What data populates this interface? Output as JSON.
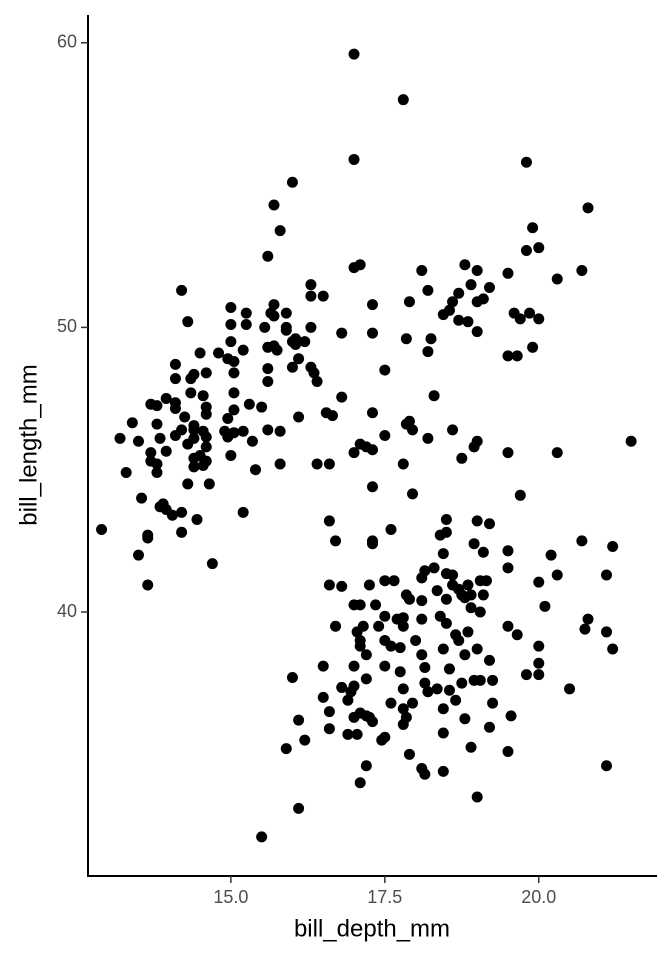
{
  "chart_data": {
    "type": "scatter",
    "x_label": "bill_depth_mm",
    "y_label": "bill_length_mm",
    "color": "#000000",
    "xlim": [
      12.68,
      21.92
    ],
    "ylim": [
      30.725,
      60.975
    ],
    "xticks": [
      {
        "value": 15,
        "label": "15.0"
      },
      17.5,
      {
        "value": 20,
        "label": "20.0"
      }
    ],
    "yticks": [
      40,
      50,
      60
    ],
    "x": [
      17.0,
      17.8,
      17.0,
      19.8,
      16.0,
      20.8,
      15.7,
      19.9,
      15.8,
      19.8,
      20.0,
      15.6,
      17.1,
      17.0,
      18.8,
      19.0,
      18.1,
      19.5,
      20.7,
      20.3,
      16.3,
      14.2,
      18.2,
      18.9,
      19.2,
      18.7,
      16.5,
      16.3,
      19.1,
      18.6,
      17.9,
      19.0,
      17.3,
      15.7,
      15.0,
      15.25,
      15.9,
      15.65,
      15.7,
      18.55,
      19.6,
      19.85,
      19.7,
      20.0,
      18.45,
      14.3,
      18.7,
      18.85,
      15.0,
      15.25,
      15.9,
      15.9,
      16.3,
      15.55,
      16.8,
      17.3,
      19.0,
      16.05,
      17.85,
      18.25,
      16.2,
      15.0,
      16.05,
      16.0,
      15.6,
      15.7,
      19.9,
      14.5,
      14.8,
      15.2,
      15.75,
      18.2,
      19.5,
      19.65,
      16.1,
      14.95,
      15.05,
      16.0,
      14.1,
      16.3,
      15.6,
      17.5,
      15.05,
      14.6,
      14.4,
      16.35,
      14.35,
      14.1,
      15.6,
      16.4,
      14.35,
      18.3,
      15.05,
      14.55,
      13.95,
      16.8,
      13.7,
      13.8,
      14.1,
      15.3,
      15.5,
      14.1,
      14.6,
      15.05,
      17.3,
      16.55,
      16.65,
      14.6,
      14.25,
      14.95,
      16.1,
      17.9,
      17.85,
      17.95,
      13.4,
      13.8,
      14.4,
      14.2,
      14.4,
      14.55,
      14.9,
      15.05,
      15.2,
      15.6,
      15.8,
      18.6,
      13.2,
      13.85,
      14.1,
      14.4,
      14.6,
      14.95,
      17.5,
      18.2,
      19.0,
      21.5,
      13.5,
      17.1,
      17.2,
      18.95,
      14.3,
      14.6,
      15.35,
      17.0,
      17.3,
      19.5,
      20.3,
      18.75,
      13.7,
      13.95,
      13.7,
      14.5,
      14.4,
      15.0,
      13.8,
      14.6,
      14.4,
      14.55,
      15.8,
      16.4,
      16.6,
      17.8,
      13.3,
      13.8,
      15.4,
      14.3,
      17.3,
      14.65,
      19.7,
      17.95,
      13.55,
      13.9,
      13.95,
      14.05,
      15.2,
      14.2,
      14.45,
      13.85,
      18.5,
      19.0,
      19.2,
      16.6,
      12.9,
      14.2,
      17.6,
      18.5,
      13.65,
      13.65,
      18.4,
      17.3,
      17.3,
      16.7,
      18.95,
      20.7,
      21.2,
      19.5,
      19.1,
      13.5,
      18.45,
      20.2,
      14.7,
      18.3,
      19.5,
      20.3,
      21.1,
      18.15,
      18.5,
      18.6,
      17.5,
      17.65,
      18.1,
      19.05,
      19.15,
      20.0,
      13.65,
      16.6,
      16.8,
      17.25,
      18.6,
      18.85,
      18.7,
      18.35,
      17.85,
      18.75,
      18.9,
      17.9,
      18.1,
      19.1,
      18.5,
      18.8,
      17.0,
      17.1,
      17.35,
      20.1,
      18.9,
      19.05,
      17.8,
      17.5,
      17.7,
      18.1,
      18.4,
      20.8,
      21.1,
      21.2,
      20.75,
      18.5,
      16.7,
      17.15,
      17.4,
      17.8,
      19.5,
      17.05,
      18.85,
      19.65,
      18.65,
      17.1,
      17.5,
      17.6,
      18.0,
      18.7,
      17.1,
      17.2,
      17.75,
      18.45,
      19.0,
      20.0,
      18.1,
      18.8,
      17.0,
      16.5,
      17.5,
      19.2,
      20.0,
      18.15,
      17.75,
      18.55,
      19.8,
      20.0,
      16.0,
      18.95,
      17.2,
      19.05,
      19.25,
      18.15,
      18.75,
      16.8,
      20.5,
      16.95,
      17.0,
      17.8,
      18.2,
      18.35,
      18.55,
      16.5,
      16.9,
      18.65,
      17.6,
      17.95,
      19.25,
      18.45,
      17.8,
      16.6,
      17.1,
      17.0,
      17.2,
      17.25,
      17.85,
      16.1,
      17.3,
      19.55,
      18.8,
      16.6,
      17.8,
      16.9,
      17.05,
      17.5,
      17.45,
      18.45,
      19.2,
      16.2,
      15.9,
      17.9,
      18.9,
      19.5,
      17.2,
      18.1,
      18.45,
      21.1,
      18.15,
      17.1,
      19.0,
      16.1,
      15.5
    ],
    "values": [
      59.6,
      58.0,
      55.9,
      55.8,
      55.1,
      54.2,
      54.3,
      53.5,
      53.4,
      52.7,
      52.8,
      52.5,
      52.2,
      52.1,
      52.2,
      52.0,
      52.0,
      51.9,
      52.0,
      51.7,
      51.5,
      51.3,
      51.3,
      51.5,
      51.4,
      51.2,
      51.1,
      51.1,
      51.0,
      50.9,
      50.9,
      50.9,
      50.8,
      50.8,
      50.7,
      50.5,
      50.5,
      50.5,
      50.4,
      50.6,
      50.5,
      50.5,
      50.3,
      50.3,
      50.45,
      50.2,
      50.25,
      50.2,
      50.1,
      50.1,
      50.0,
      49.9,
      50.0,
      50.0,
      49.8,
      49.8,
      49.85,
      49.6,
      49.6,
      49.6,
      49.5,
      49.5,
      49.4,
      49.5,
      49.3,
      49.35,
      49.3,
      49.1,
      49.1,
      49.2,
      49.2,
      49.15,
      49.0,
      49.0,
      48.9,
      48.9,
      48.8,
      48.6,
      48.7,
      48.6,
      48.55,
      48.5,
      48.4,
      48.4,
      48.35,
      48.4,
      48.2,
      48.2,
      48.1,
      48.1,
      47.7,
      47.6,
      47.7,
      47.6,
      47.5,
      47.55,
      47.3,
      47.25,
      47.35,
      47.3,
      47.2,
      47.15,
      47.2,
      47.1,
      47.0,
      47.0,
      46.9,
      46.95,
      46.85,
      46.8,
      46.85,
      46.7,
      46.6,
      46.4,
      46.65,
      46.6,
      46.55,
      46.4,
      46.4,
      46.35,
      46.35,
      46.3,
      46.35,
      46.4,
      46.35,
      46.4,
      46.1,
      46.1,
      46.2,
      46.1,
      46.15,
      46.15,
      46.2,
      46.1,
      46.0,
      46.0,
      46.0,
      45.9,
      45.8,
      45.8,
      45.9,
      45.8,
      46.0,
      45.6,
      45.7,
      45.6,
      45.6,
      45.4,
      45.6,
      45.65,
      45.3,
      45.5,
      45.4,
      45.5,
      45.2,
      45.3,
      45.1,
      45.15,
      45.2,
      45.2,
      45.2,
      45.2,
      44.9,
      44.9,
      45.0,
      44.5,
      44.4,
      44.5,
      44.1,
      44.15,
      44.0,
      43.8,
      43.6,
      43.4,
      43.5,
      43.5,
      43.25,
      43.7,
      43.25,
      43.2,
      43.1,
      43.2,
      42.9,
      42.8,
      42.9,
      42.8,
      42.7,
      42.6,
      42.7,
      42.5,
      42.4,
      42.5,
      42.4,
      42.5,
      42.3,
      42.15,
      42.1,
      42.0,
      42.05,
      42.0,
      41.7,
      41.55,
      41.55,
      41.3,
      41.3,
      41.45,
      41.35,
      41.3,
      41.1,
      41.1,
      41.2,
      41.1,
      41.1,
      41.05,
      40.95,
      40.95,
      40.9,
      40.95,
      40.95,
      40.95,
      40.8,
      40.75,
      40.6,
      40.6,
      40.6,
      40.45,
      40.4,
      40.6,
      40.45,
      40.5,
      40.25,
      40.25,
      40.25,
      40.2,
      40.15,
      40.0,
      39.8,
      39.85,
      39.75,
      39.75,
      39.85,
      39.75,
      39.3,
      38.7,
      39.4,
      39.6,
      39.5,
      39.5,
      39.5,
      39.5,
      39.5,
      39.3,
      39.3,
      39.2,
      39.2,
      39.0,
      39.0,
      38.8,
      39.0,
      39.0,
      38.8,
      38.5,
      38.75,
      38.7,
      38.7,
      38.8,
      38.5,
      38.5,
      38.1,
      38.1,
      38.1,
      38.3,
      38.2,
      38.05,
      37.9,
      38.0,
      37.8,
      37.8,
      37.7,
      37.6,
      37.65,
      37.6,
      37.6,
      37.5,
      37.5,
      37.35,
      37.3,
      37.2,
      37.4,
      37.3,
      37.2,
      37.3,
      37.25,
      37.0,
      36.9,
      36.9,
      36.8,
      36.8,
      36.8,
      36.6,
      36.6,
      36.5,
      36.45,
      36.3,
      36.35,
      36.3,
      36.3,
      36.2,
      36.15,
      36.35,
      36.25,
      35.9,
      36.05,
      35.7,
      35.7,
      35.6,
      35.5,
      35.75,
      35.95,
      35.5,
      35.2,
      35.0,
      35.25,
      35.1,
      34.6,
      34.5,
      34.4,
      34.6,
      34.3,
      34.0,
      33.5,
      33.1,
      32.1
    ]
  }
}
